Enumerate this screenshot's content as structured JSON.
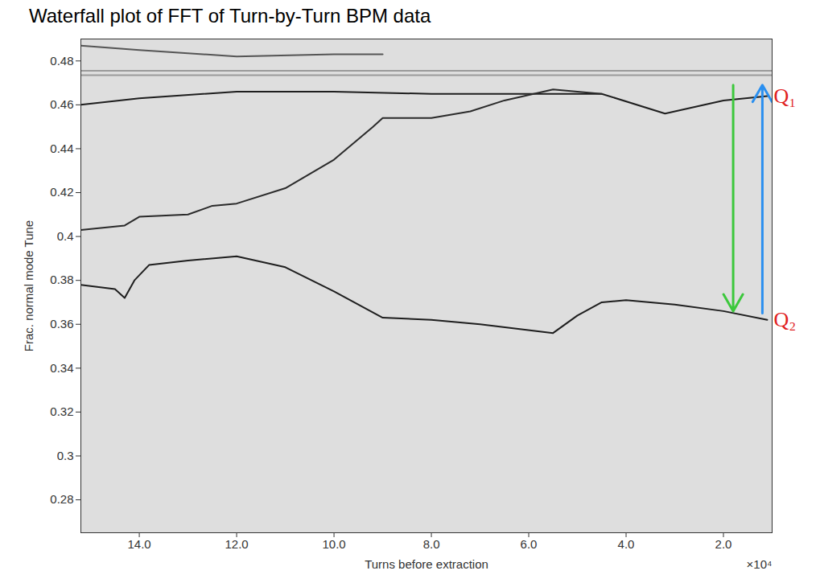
{
  "chart_data": {
    "type": "line",
    "title": "Waterfall plot of FFT of Turn-by-Turn BPM data",
    "x_label": "Turns before extraction",
    "y_label": "Frac. normal mode Tune",
    "x_exponent_label": "×10⁴",
    "xlim": [
      15.2,
      1.0
    ],
    "ylim": [
      0.265,
      0.49
    ],
    "xticks": [
      {
        "value": 14,
        "label": "14.0"
      },
      {
        "value": 12,
        "label": "12.0"
      },
      {
        "value": 10,
        "label": "10.0"
      },
      {
        "value": 8,
        "label": "8.0"
      },
      {
        "value": 6,
        "label": "6.0"
      },
      {
        "value": 4,
        "label": "4.0"
      },
      {
        "value": 2,
        "label": "2.0"
      }
    ],
    "yticks": [
      0.28,
      0.3,
      0.32,
      0.34,
      0.36,
      0.38,
      0.4,
      0.42,
      0.44,
      0.46,
      0.48
    ],
    "grid": false,
    "series": [
      {
        "color": "#555555",
        "x": [
          15.2,
          14,
          12,
          10,
          9
        ],
        "values": [
          0.487,
          0.485,
          0.482,
          0.483,
          0.483
        ]
      },
      {
        "color": "#9a9a9a",
        "x": [
          15.2,
          1.0
        ],
        "values": [
          0.4755,
          0.4755
        ]
      },
      {
        "color": "#9a9a9a",
        "x": [
          15.2,
          1.0
        ],
        "values": [
          0.4735,
          0.4735
        ]
      },
      {
        "color": "#1e1e1e",
        "x": [
          15.2,
          14,
          12,
          10,
          8,
          6,
          4.5,
          3.2,
          2,
          1.1
        ],
        "values": [
          0.46,
          0.463,
          0.466,
          0.466,
          0.465,
          0.465,
          0.465,
          0.456,
          0.462,
          0.464
        ]
      },
      {
        "color": "#2a2a2a",
        "x": [
          15.2,
          14.3,
          14,
          13,
          12.5,
          12,
          11,
          10,
          9.2,
          9,
          8,
          7.2,
          6.5,
          5.5,
          4.5
        ],
        "values": [
          0.403,
          0.405,
          0.409,
          0.41,
          0.414,
          0.415,
          0.422,
          0.435,
          0.45,
          0.454,
          0.454,
          0.457,
          0.462,
          0.467,
          0.465
        ]
      },
      {
        "color": "#1e1e1e",
        "x": [
          15.2,
          14.5,
          14.3,
          14.1,
          13.8,
          13,
          12,
          11,
          10,
          9,
          8,
          7,
          5.5,
          5,
          4.5,
          4,
          3,
          2,
          1.1
        ],
        "values": [
          0.378,
          0.376,
          0.372,
          0.38,
          0.387,
          0.389,
          0.391,
          0.386,
          0.375,
          0.363,
          0.362,
          0.36,
          0.356,
          0.364,
          0.37,
          0.371,
          0.369,
          0.366,
          0.362
        ]
      }
    ],
    "arrows": [
      {
        "x": 1.8,
        "y1": 0.469,
        "y2": 0.366,
        "color": "#3cc83c"
      },
      {
        "x": 1.2,
        "y1": 0.365,
        "y2": 0.469,
        "color": "#2a8ff0"
      }
    ],
    "annotations": [
      {
        "text": "Q₁",
        "x": 1.1,
        "y": 0.464,
        "color": "#e02020"
      },
      {
        "text": "Q₂",
        "x": 1.1,
        "y": 0.362,
        "color": "#e02020"
      }
    ]
  }
}
